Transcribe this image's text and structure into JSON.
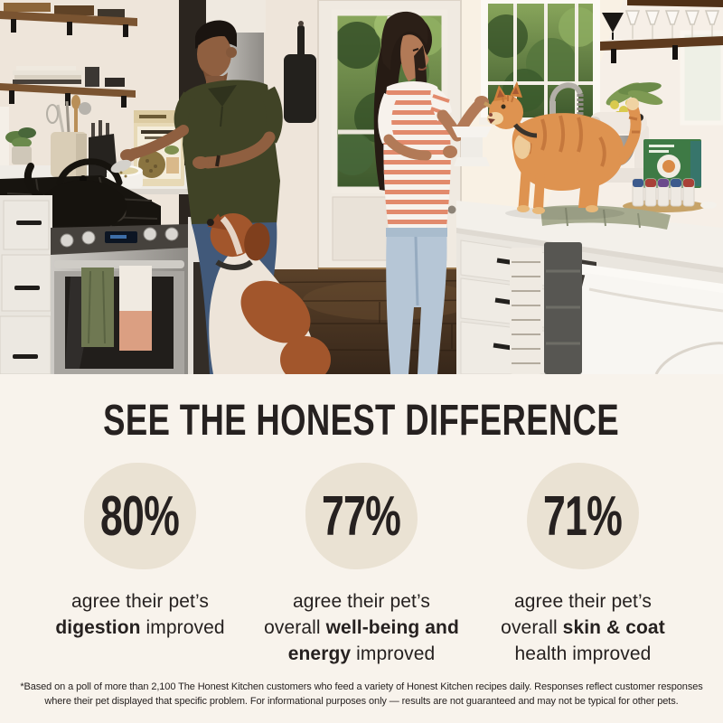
{
  "colors": {
    "bg": "#f8f3ec",
    "blob": "#eae2d3",
    "ink": "#262120"
  },
  "hero": {
    "alt": "Kitchen photo: a man in an olive polo pours The Honest Kitchen food into a bowl while a brown-and-white dog looks up, and a woman in a striped tee spoon-feeds an orange tabby cat standing on the white counter."
  },
  "headline": "SEE THE HONEST DIFFERENCE",
  "stats": [
    {
      "value": "80%",
      "lines": [
        [
          {
            "t": "agree their pet’s",
            "b": false
          }
        ],
        [
          {
            "t": "digestion",
            "b": true
          },
          {
            "t": " improved",
            "b": false
          }
        ]
      ]
    },
    {
      "value": "77%",
      "lines": [
        [
          {
            "t": "agree their pet’s",
            "b": false
          }
        ],
        [
          {
            "t": "overall ",
            "b": false
          },
          {
            "t": "well-being and",
            "b": true
          }
        ],
        [
          {
            "t": "energy",
            "b": true
          },
          {
            "t": " improved",
            "b": false
          }
        ]
      ]
    },
    {
      "value": "71%",
      "lines": [
        [
          {
            "t": "agree their pet’s",
            "b": false
          }
        ],
        [
          {
            "t": "overall ",
            "b": false
          },
          {
            "t": "skin & coat",
            "b": true
          }
        ],
        [
          {
            "t": "health improved",
            "b": false
          }
        ]
      ]
    }
  ],
  "disclaimer": {
    "lines": [
      "*Based on a poll of more than 2,100 The Honest Kitchen customers who feed a variety of Honest Kitchen recipes daily. Responses reflect customer responses",
      "where their pet displayed that specific problem. For informational purposes only — results are not guaranteed and may not be typical for other pets."
    ]
  }
}
